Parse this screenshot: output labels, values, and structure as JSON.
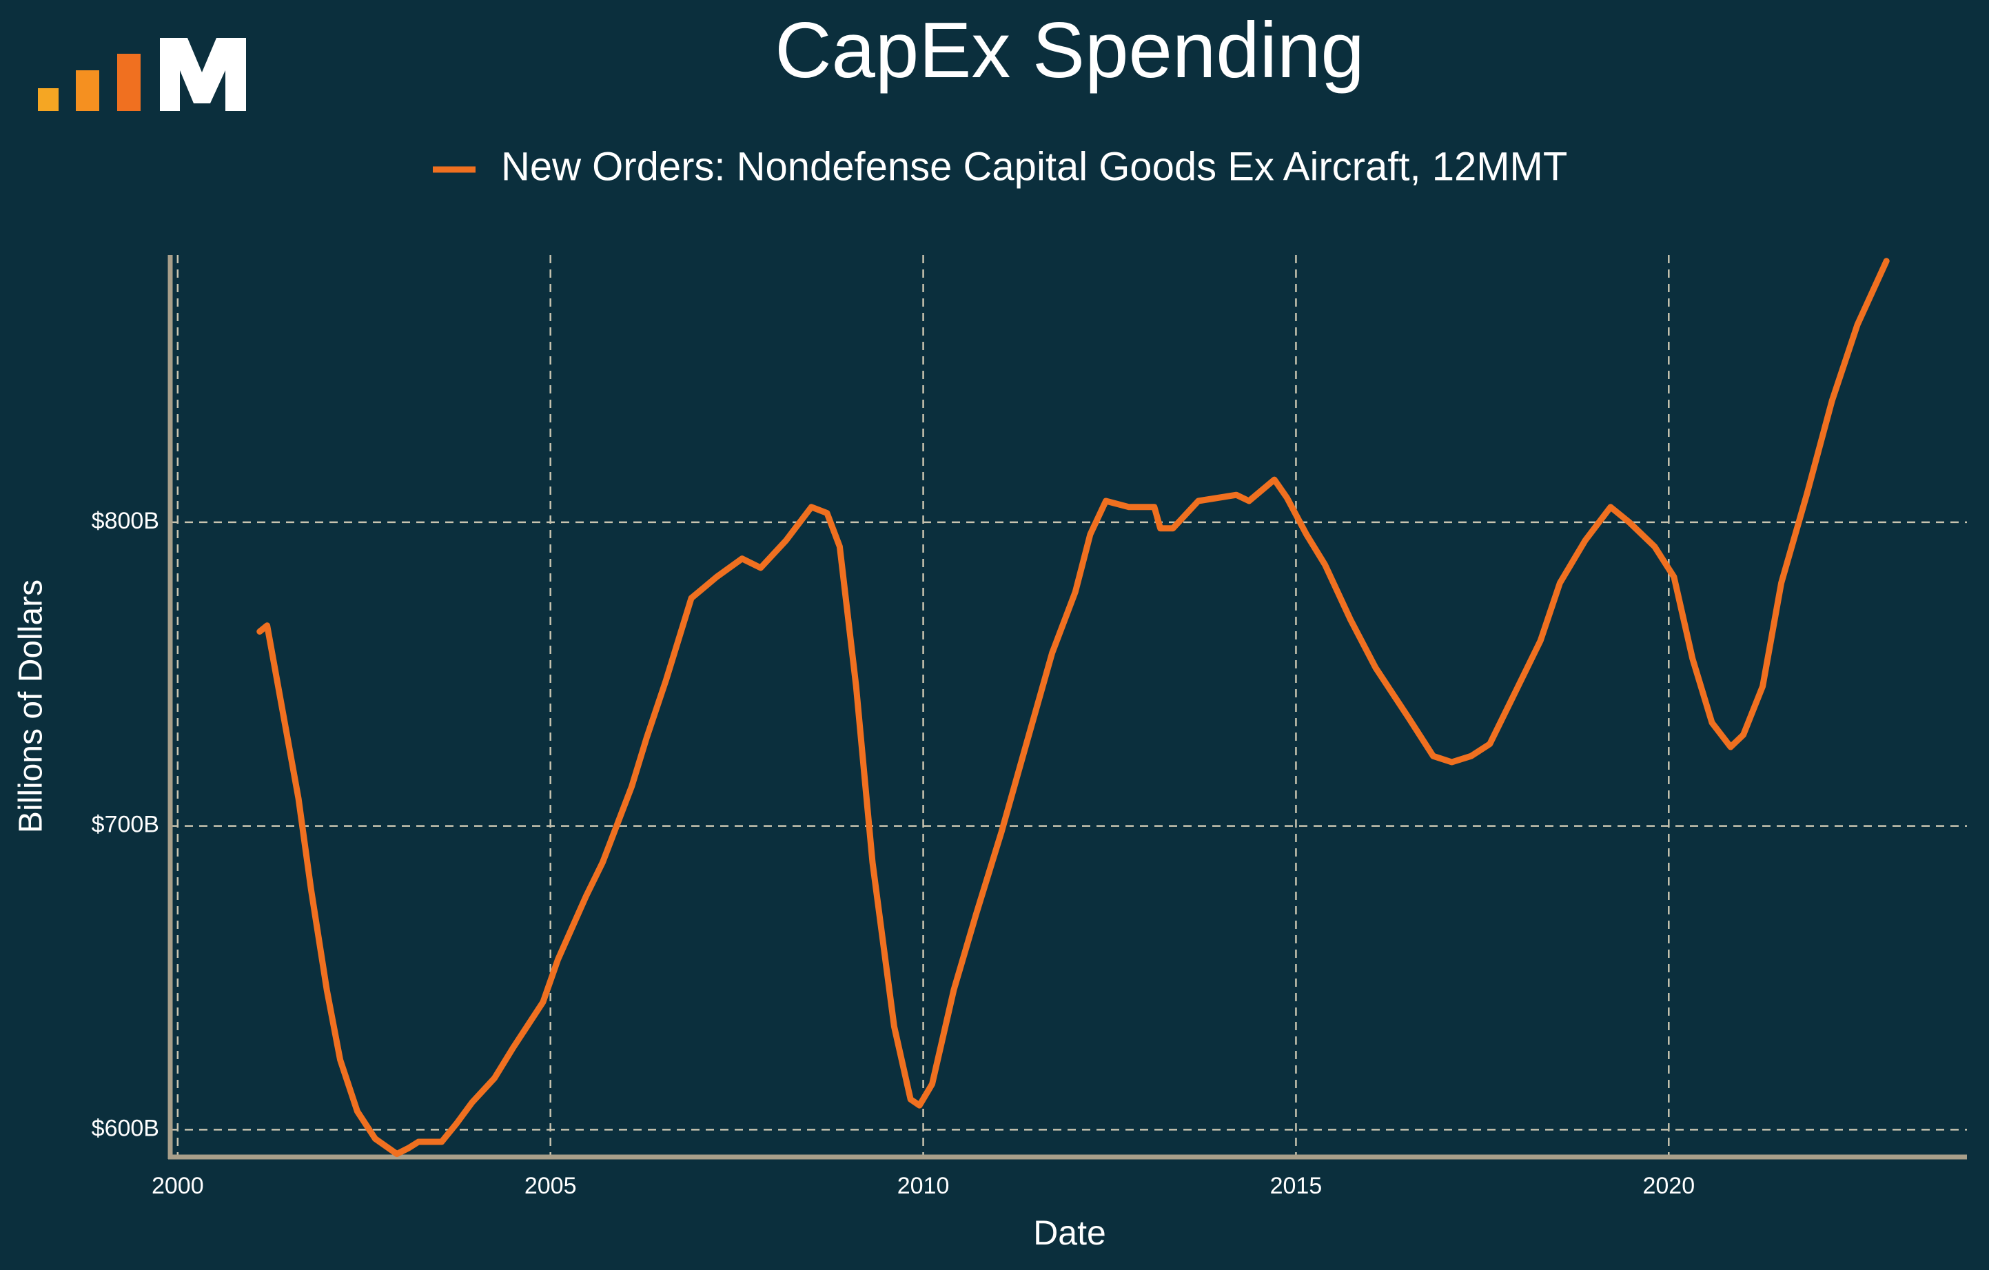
{
  "chart_data": {
    "type": "line",
    "title": "CapEx Spending",
    "x_label": "Date",
    "y_label": "Billions of Dollars",
    "x": [
      2001.1,
      2001.2,
      2001.62,
      2001.79,
      2002.0,
      2002.18,
      2002.41,
      2002.65,
      2002.94,
      2003.1,
      2003.23,
      2003.54,
      2003.74,
      2003.95,
      2004.25,
      2004.5,
      2004.9,
      2005.1,
      2005.48,
      2005.7,
      2006.09,
      2006.29,
      2006.55,
      2006.89,
      2007.23,
      2007.57,
      2007.82,
      2008.16,
      2008.5,
      2008.71,
      2008.88,
      2009.1,
      2009.32,
      2009.61,
      2009.83,
      2009.95,
      2010.12,
      2010.41,
      2010.71,
      2011.05,
      2011.36,
      2011.73,
      2012.04,
      2012.24,
      2012.45,
      2012.76,
      2013.1,
      2013.18,
      2013.35,
      2013.69,
      2014.2,
      2014.37,
      2014.71,
      2014.88,
      2015.14,
      2015.39,
      2015.73,
      2016.07,
      2016.5,
      2016.84,
      2017.09,
      2017.35,
      2017.6,
      2017.94,
      2018.28,
      2018.54,
      2018.88,
      2019.22,
      2019.47,
      2019.81,
      2020.07,
      2020.32,
      2020.58,
      2020.83,
      2021.0,
      2021.26,
      2021.51,
      2021.85,
      2022.19,
      2022.53,
      2022.92
    ],
    "series": [
      {
        "name": "New Orders: Nondefense Capital Goods Ex Aircraft, 12MMT",
        "color": "#f07020",
        "values": [
          764,
          766,
          709,
          679,
          646,
          623,
          606,
          597,
          592,
          594,
          596,
          596,
          602,
          609,
          617,
          627,
          642,
          656,
          677,
          688,
          713,
          729,
          748,
          775,
          782,
          788,
          785,
          794,
          805,
          803,
          792,
          746,
          688,
          634,
          610,
          608,
          615,
          646,
          671,
          698,
          725,
          757,
          777,
          796,
          807,
          805,
          805,
          798,
          798,
          807,
          809,
          807,
          814,
          808,
          796,
          786,
          768,
          752,
          736,
          723,
          721,
          723,
          727,
          744,
          761,
          780,
          794,
          805,
          800,
          792,
          782,
          755,
          734,
          726,
          730,
          746,
          780,
          809,
          840,
          865,
          886
        ]
      }
    ],
    "xlim": [
      1999.9,
      2024
    ],
    "xticks": [
      2000,
      2005,
      2010,
      2015,
      2020
    ],
    "ylim": [
      591,
      888
    ],
    "yticks": [
      {
        "value": 600,
        "label": "$600B"
      },
      {
        "value": 700,
        "label": "$700B"
      },
      {
        "value": 800,
        "label": "$800B"
      }
    ],
    "grid": true
  }
}
